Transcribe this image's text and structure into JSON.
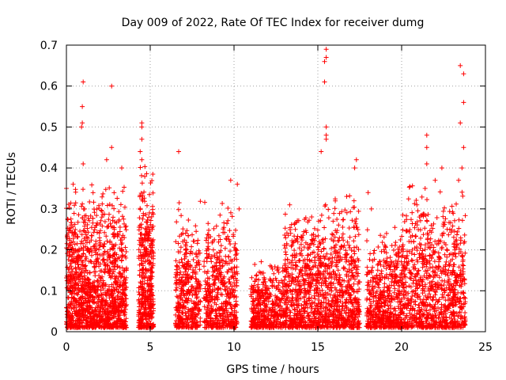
{
  "chart_data": {
    "type": "scatter",
    "title": "Day 009 of 2022, Rate Of TEC Index for receiver dumg",
    "xlabel": "GPS time / hours",
    "ylabel": "ROTI / TECUs",
    "xlim": [
      0,
      25
    ],
    "ylim": [
      0,
      0.7
    ],
    "x_ticks": [
      0,
      5,
      10,
      15,
      20,
      25
    ],
    "x_tick_labels": [
      "0",
      "5",
      "10",
      "15",
      "20",
      "25"
    ],
    "y_ticks": [
      0,
      0.1,
      0.2,
      0.3,
      0.4,
      0.5,
      0.6,
      0.7
    ],
    "y_tick_labels": [
      "0",
      "0.1",
      "0.2",
      "0.3",
      "0.4",
      "0.5",
      "0.6",
      "0.7"
    ],
    "grid": true,
    "marker": "+",
    "marker_color": "#ff0000",
    "series": [
      {
        "name": "ROTI",
        "clusters": [
          {
            "x_range": [
              0.0,
              3.6
            ],
            "base_max": 0.25,
            "density": 1300
          },
          {
            "x_range": [
              4.3,
              5.2
            ],
            "base_max": 0.28,
            "density": 420
          },
          {
            "x_range": [
              6.5,
              8.0
            ],
            "base_max": 0.22,
            "density": 380
          },
          {
            "x_range": [
              8.2,
              10.2
            ],
            "base_max": 0.22,
            "density": 480
          },
          {
            "x_range": [
              11.0,
              13.0
            ],
            "base_max": 0.12,
            "density": 420
          },
          {
            "x_range": [
              13.0,
              15.5
            ],
            "base_max": 0.22,
            "density": 650
          },
          {
            "x_range": [
              15.5,
              17.5
            ],
            "base_max": 0.24,
            "density": 520
          },
          {
            "x_range": [
              17.9,
              20.0
            ],
            "base_max": 0.18,
            "density": 520
          },
          {
            "x_range": [
              20.0,
              23.8
            ],
            "base_max": 0.25,
            "density": 900
          }
        ],
        "outliers": [
          [
            1.0,
            0.61
          ],
          [
            0.95,
            0.55
          ],
          [
            0.9,
            0.5
          ],
          [
            0.95,
            0.51
          ],
          [
            2.7,
            0.6
          ],
          [
            2.7,
            0.45
          ],
          [
            0.0,
            0.35
          ],
          [
            0.4,
            0.36
          ],
          [
            1.0,
            0.41
          ],
          [
            2.4,
            0.42
          ],
          [
            3.3,
            0.4
          ],
          [
            4.5,
            0.5
          ],
          [
            4.5,
            0.51
          ],
          [
            4.5,
            0.47
          ],
          [
            4.4,
            0.44
          ],
          [
            4.5,
            0.42
          ],
          [
            6.7,
            0.44
          ],
          [
            9.8,
            0.37
          ],
          [
            10.2,
            0.36
          ],
          [
            10.3,
            0.3
          ],
          [
            15.5,
            0.69
          ],
          [
            15.5,
            0.67
          ],
          [
            15.4,
            0.66
          ],
          [
            15.4,
            0.61
          ],
          [
            15.5,
            0.5
          ],
          [
            15.5,
            0.48
          ],
          [
            15.5,
            0.47
          ],
          [
            15.2,
            0.44
          ],
          [
            17.3,
            0.42
          ],
          [
            17.2,
            0.4
          ],
          [
            18.0,
            0.34
          ],
          [
            18.2,
            0.3
          ],
          [
            21.5,
            0.48
          ],
          [
            21.5,
            0.45
          ],
          [
            21.5,
            0.41
          ],
          [
            22.0,
            0.37
          ],
          [
            22.4,
            0.4
          ],
          [
            23.5,
            0.65
          ],
          [
            23.7,
            0.63
          ],
          [
            23.7,
            0.56
          ],
          [
            23.5,
            0.51
          ],
          [
            23.7,
            0.45
          ],
          [
            23.6,
            0.4
          ],
          [
            23.4,
            0.37
          ],
          [
            21.4,
            0.35
          ]
        ]
      }
    ]
  }
}
